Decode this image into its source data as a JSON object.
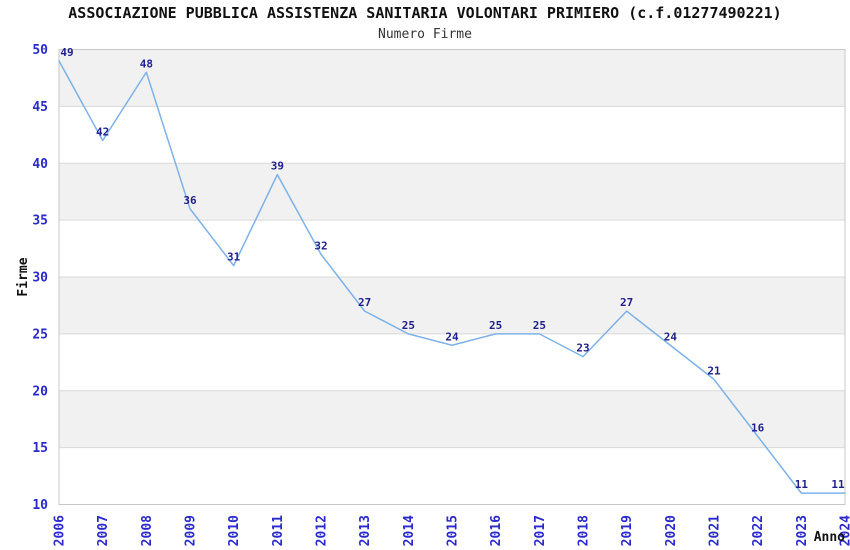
{
  "chart_data": {
    "type": "line",
    "title": "ASSOCIAZIONE PUBBLICA ASSISTENZA SANITARIA VOLONTARI PRIMIERO (c.f.01277490221)",
    "subtitle": "Numero Firme",
    "xlabel": "Anno",
    "ylabel": "Firme",
    "x": [
      2006,
      2007,
      2008,
      2009,
      2010,
      2011,
      2012,
      2013,
      2014,
      2015,
      2016,
      2017,
      2018,
      2019,
      2020,
      2021,
      2022,
      2023,
      2024
    ],
    "values": [
      49,
      42,
      48,
      36,
      31,
      39,
      32,
      27,
      25,
      24,
      25,
      25,
      23,
      27,
      24,
      21,
      16,
      11,
      11
    ],
    "ylim": [
      10,
      50
    ],
    "ytick_step": 5,
    "yticks": [
      10,
      15,
      20,
      25,
      30,
      35,
      40,
      45,
      50
    ],
    "grid": "alternating-horizontal-bands",
    "legend": "none",
    "point_labels_shown": true,
    "colors": {
      "line": "#7EB2E8",
      "point_label": "#1F1F8C",
      "tick_label": "#2929CC",
      "band_gray": "#F1F1F1",
      "band_white": "#FFFFFF",
      "grid_line": "#D9D9D9",
      "plot_border": "#C9C9C9",
      "title_text": "#111111",
      "subtitle_text": "#333333"
    }
  }
}
